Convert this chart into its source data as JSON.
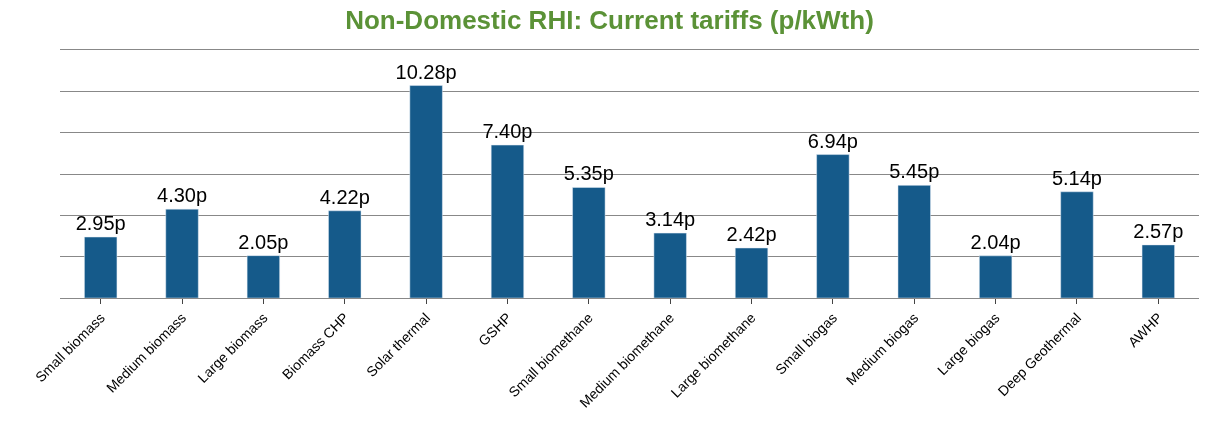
{
  "chart_data": {
    "type": "bar",
    "title": "Non-Domestic RHI: Current tariffs (p/kWth)",
    "categories": [
      "Small biomass",
      "Medium biomass",
      "Large biomass",
      "Biomass CHP",
      "Solar thermal",
      "GSHP",
      "Small biomethane",
      "Medium biomethane",
      "Large biomethane",
      "Small biogas",
      "Medium biogas",
      "Large biogas",
      "Deep Geothermal",
      "AWHP"
    ],
    "values": [
      2.95,
      4.3,
      2.05,
      4.22,
      10.28,
      7.4,
      5.35,
      3.14,
      2.42,
      6.94,
      5.45,
      2.04,
      5.14,
      2.57
    ],
    "value_labels": [
      "2.95p",
      "4.30p",
      "2.05p",
      "4.22p",
      "10.28p",
      "7.40p",
      "5.35p",
      "3.14p",
      "2.42p",
      "6.94p",
      "5.45p",
      "2.04p",
      "5.14p",
      "2.57p"
    ],
    "color": "#155a8a",
    "ylim": [
      0,
      12
    ],
    "yticks": [
      {
        "value": 0,
        "label": null
      },
      {
        "value": 2,
        "label": null
      },
      {
        "value": 4,
        "label": null
      },
      {
        "value": 6,
        "label": null
      },
      {
        "value": 8,
        "label": null
      },
      {
        "value": 10,
        "label": null
      },
      {
        "value": 12,
        "label": null
      }
    ],
    "grid": "y",
    "tick_labels": "x",
    "legend": false
  }
}
